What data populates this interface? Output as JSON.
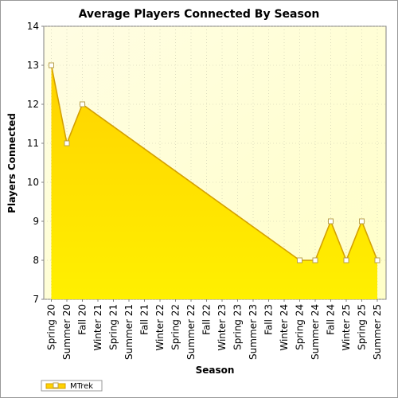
{
  "chart_data": {
    "type": "area",
    "title": "Average Players Connected By Season",
    "xlabel": "Season",
    "ylabel": "Players Connected",
    "ylim": [
      7,
      14
    ],
    "yticks": [
      7,
      8,
      9,
      10,
      11,
      12,
      13,
      14
    ],
    "grid": true,
    "legend_position": "bottom-left",
    "categories": [
      "Spring 20",
      "Summer 20",
      "Fall 20",
      "Winter 21",
      "Spring 21",
      "Summer 21",
      "Fall 21",
      "Winter 22",
      "Spring 22",
      "Summer 22",
      "Fall 22",
      "Winter 23",
      "Spring 23",
      "Summer 23",
      "Fall 23",
      "Winter 24",
      "Spring 24",
      "Summer 24",
      "Fall 24",
      "Winter 25",
      "Spring 25",
      "Summer 25"
    ],
    "series": [
      {
        "name": "MTrek",
        "color": "#ffe000",
        "line_color": "#d4a000",
        "points": [
          {
            "category": "Spring 20",
            "value": 13
          },
          {
            "category": "Summer 20",
            "value": 11
          },
          {
            "category": "Fall 20",
            "value": 12
          },
          {
            "category": "Spring 24",
            "value": 8
          },
          {
            "category": "Summer 24",
            "value": 8
          },
          {
            "category": "Fall 24",
            "value": 9
          },
          {
            "category": "Winter 25",
            "value": 8
          },
          {
            "category": "Spring 25",
            "value": 9
          },
          {
            "category": "Summer 25",
            "value": 8
          }
        ]
      }
    ],
    "colors": {
      "plot_background_top": "#fffde3",
      "plot_background_bottom": "#ffffc8",
      "grid": "#c8c8b0"
    }
  }
}
